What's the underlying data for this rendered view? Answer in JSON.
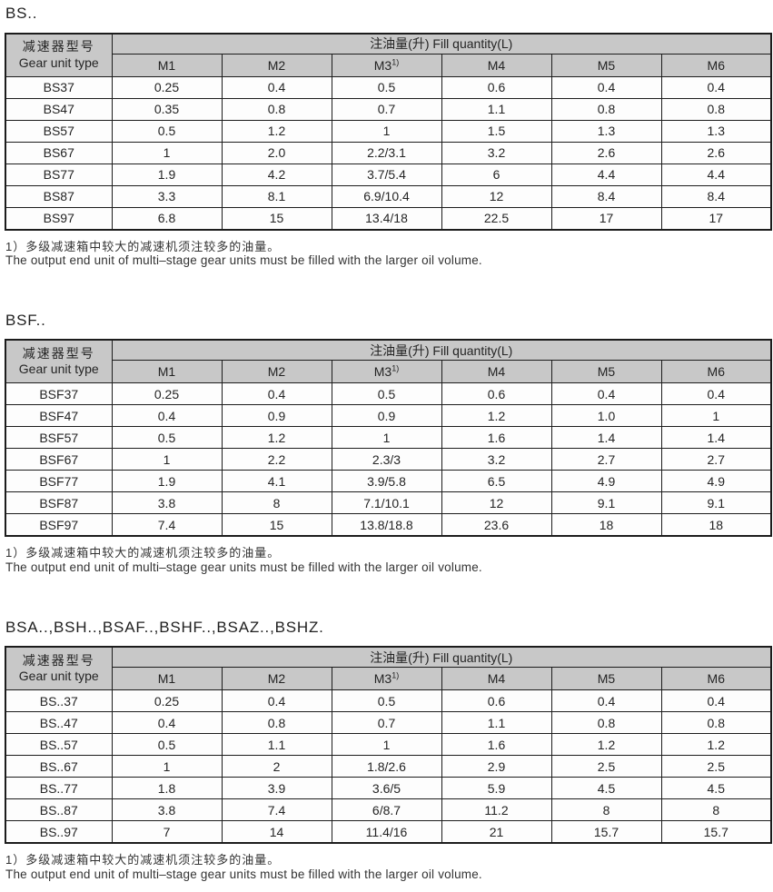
{
  "colors": {
    "header_bg": "#c8c8c8",
    "border": "#1c1c1c",
    "text": "#262626",
    "page_bg": "#ffffff"
  },
  "shared": {
    "corner_zh": "减速器型号",
    "corner_en": "Gear unit type",
    "span_header": "注油量(升) Fill quantity(L)",
    "columns": [
      {
        "label": "M1",
        "sup": ""
      },
      {
        "label": "M2",
        "sup": ""
      },
      {
        "label": "M3",
        "sup": "1)"
      },
      {
        "label": "M4",
        "sup": ""
      },
      {
        "label": "M5",
        "sup": ""
      },
      {
        "label": "M6",
        "sup": ""
      }
    ],
    "footnote_zh": "1）多级减速箱中较大的减速机须注较多的油量。",
    "footnote_en": "The output end unit of multi–stage gear units must be filled with the larger oil volume."
  },
  "sections": [
    {
      "title": "BS..",
      "rows": [
        {
          "model": "BS37",
          "values": [
            "0.25",
            "0.4",
            "0.5",
            "0.6",
            "0.4",
            "0.4"
          ]
        },
        {
          "model": "BS47",
          "values": [
            "0.35",
            "0.8",
            "0.7",
            "1.1",
            "0.8",
            "0.8"
          ]
        },
        {
          "model": "BS57",
          "values": [
            "0.5",
            "1.2",
            "1",
            "1.5",
            "1.3",
            "1.3"
          ]
        },
        {
          "model": "BS67",
          "values": [
            "1",
            "2.0",
            "2.2/3.1",
            "3.2",
            "2.6",
            "2.6"
          ]
        },
        {
          "model": "BS77",
          "values": [
            "1.9",
            "4.2",
            "3.7/5.4",
            "6",
            "4.4",
            "4.4"
          ]
        },
        {
          "model": "BS87",
          "values": [
            "3.3",
            "8.1",
            "6.9/10.4",
            "12",
            "8.4",
            "8.4"
          ]
        },
        {
          "model": "BS97",
          "values": [
            "6.8",
            "15",
            "13.4/18",
            "22.5",
            "17",
            "17"
          ]
        }
      ]
    },
    {
      "title": "BSF..",
      "rows": [
        {
          "model": "BSF37",
          "values": [
            "0.25",
            "0.4",
            "0.5",
            "0.6",
            "0.4",
            "0.4"
          ]
        },
        {
          "model": "BSF47",
          "values": [
            "0.4",
            "0.9",
            "0.9",
            "1.2",
            "1.0",
            "1"
          ]
        },
        {
          "model": "BSF57",
          "values": [
            "0.5",
            "1.2",
            "1",
            "1.6",
            "1.4",
            "1.4"
          ]
        },
        {
          "model": "BSF67",
          "values": [
            "1",
            "2.2",
            "2.3/3",
            "3.2",
            "2.7",
            "2.7"
          ]
        },
        {
          "model": "BSF77",
          "values": [
            "1.9",
            "4.1",
            "3.9/5.8",
            "6.5",
            "4.9",
            "4.9"
          ]
        },
        {
          "model": "BSF87",
          "values": [
            "3.8",
            "8",
            "7.1/10.1",
            "12",
            "9.1",
            "9.1"
          ]
        },
        {
          "model": "BSF97",
          "values": [
            "7.4",
            "15",
            "13.8/18.8",
            "23.6",
            "18",
            "18"
          ]
        }
      ]
    },
    {
      "title": "BSA..,BSH..,BSAF..,BSHF..,BSAZ..,BSHZ.",
      "rows": [
        {
          "model": "BS..37",
          "values": [
            "0.25",
            "0.4",
            "0.5",
            "0.6",
            "0.4",
            "0.4"
          ]
        },
        {
          "model": "BS..47",
          "values": [
            "0.4",
            "0.8",
            "0.7",
            "1.1",
            "0.8",
            "0.8"
          ]
        },
        {
          "model": "BS..57",
          "values": [
            "0.5",
            "1.1",
            "1",
            "1.6",
            "1.2",
            "1.2"
          ]
        },
        {
          "model": "BS..67",
          "values": [
            "1",
            "2",
            "1.8/2.6",
            "2.9",
            "2.5",
            "2.5"
          ]
        },
        {
          "model": "BS..77",
          "values": [
            "1.8",
            "3.9",
            "3.6/5",
            "5.9",
            "4.5",
            "4.5"
          ]
        },
        {
          "model": "BS..87",
          "values": [
            "3.8",
            "7.4",
            "6/8.7",
            "11.2",
            "8",
            "8"
          ]
        },
        {
          "model": "BS..97",
          "values": [
            "7",
            "14",
            "11.4/16",
            "21",
            "15.7",
            "15.7"
          ]
        }
      ]
    }
  ]
}
